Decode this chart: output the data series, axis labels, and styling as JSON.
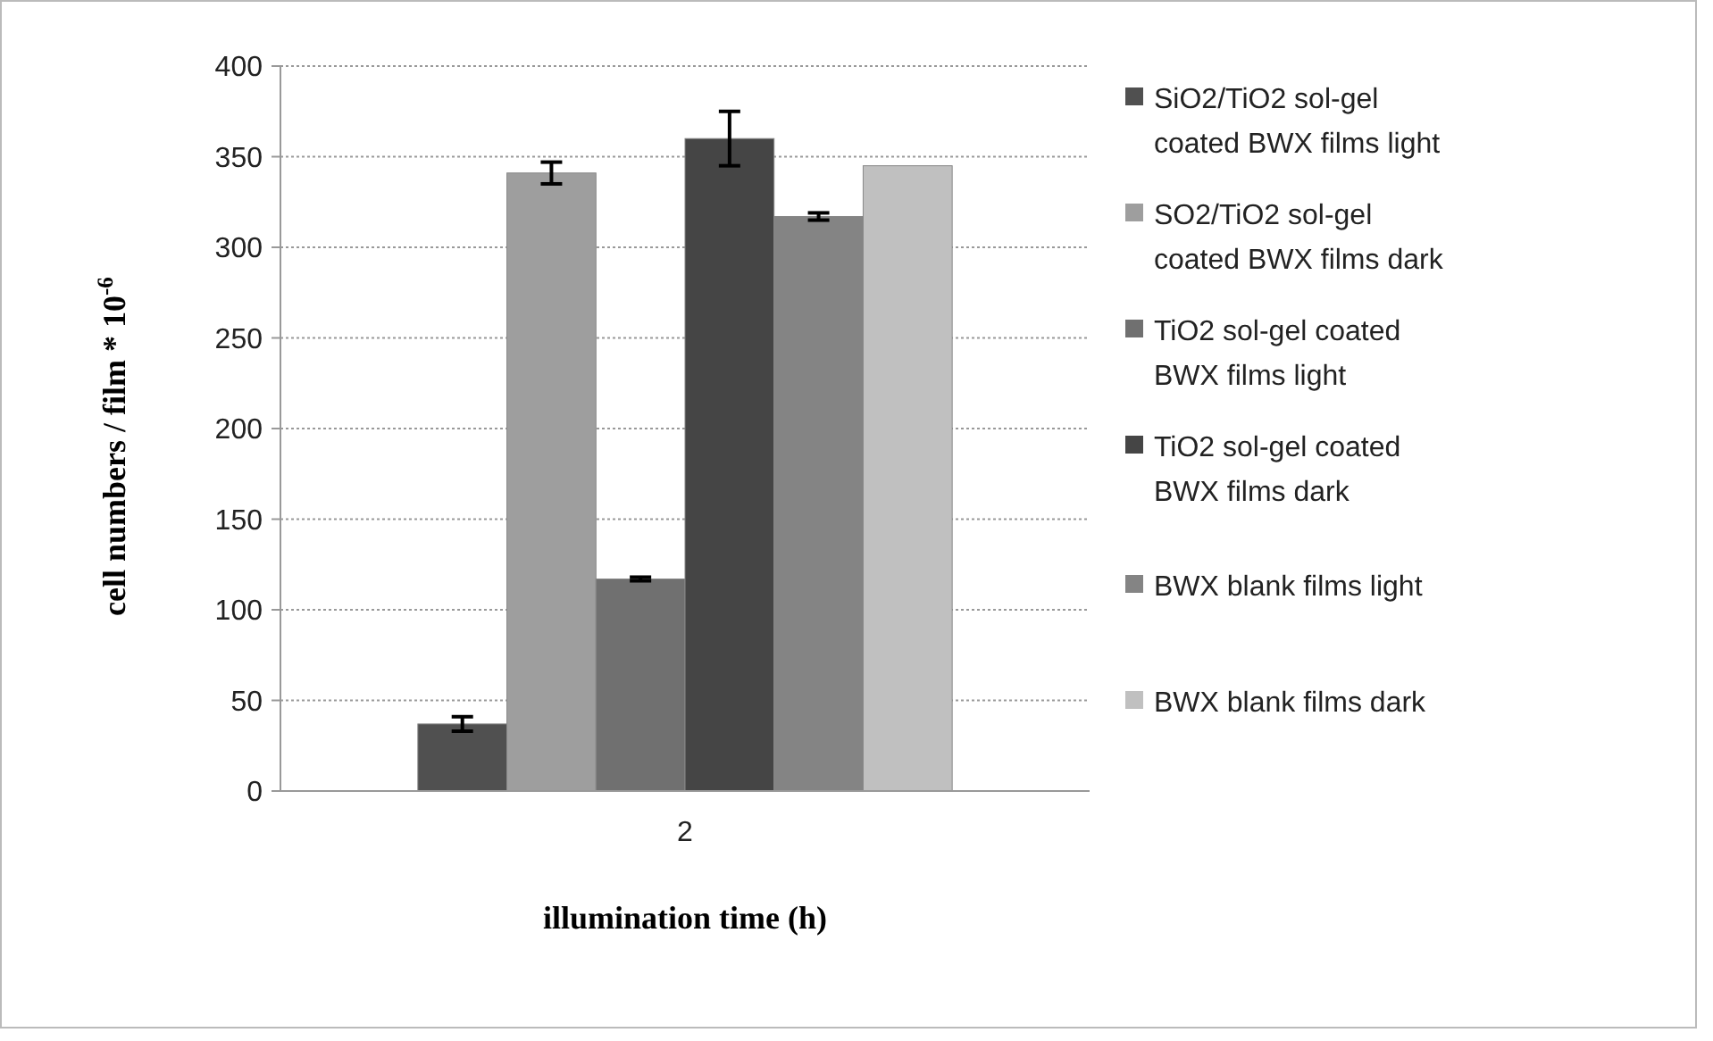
{
  "chart_data": {
    "type": "bar",
    "xlabel": "illumination time (h)",
    "ylabel": "cell numbers / film * 10$^{-6}$",
    "categories": [
      "2"
    ],
    "series": [
      {
        "name": "SiO2/TiO2 sol-gel coated BWX films light",
        "color": "#505050",
        "values": [
          37
        ],
        "errors": [
          4
        ]
      },
      {
        "name": "SO2/TiO2 sol-gel coated BWX films dark",
        "color": "#9e9e9e",
        "values": [
          341
        ],
        "errors": [
          6
        ]
      },
      {
        "name": "TiO2 sol-gel coated BWX films light",
        "color": "#707070",
        "values": [
          117
        ],
        "errors": [
          1
        ]
      },
      {
        "name": "TiO2 sol-gel coated BWX films dark",
        "color": "#454545",
        "values": [
          360
        ],
        "errors": [
          15
        ]
      },
      {
        "name": "BWX blank films light",
        "color": "#848484",
        "values": [
          317
        ],
        "errors": [
          2
        ]
      },
      {
        "name": "BWX blank films dark",
        "color": "#c0c0c0",
        "values": [
          345
        ]
      }
    ],
    "ylim": [
      0,
      400
    ],
    "yticks": [
      0,
      50,
      100,
      150,
      200,
      250,
      300,
      350,
      400
    ],
    "grid": "y",
    "legend": "right"
  }
}
